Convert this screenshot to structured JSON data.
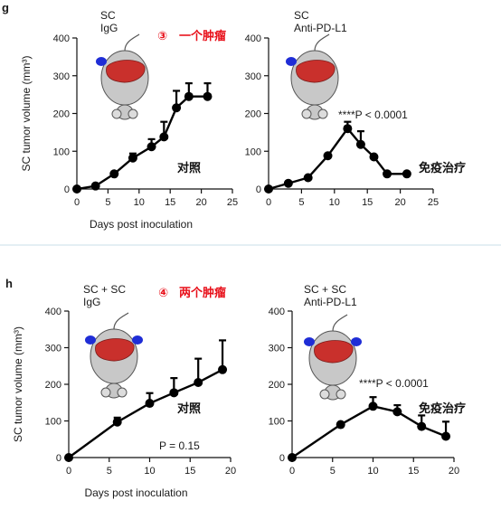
{
  "colors": {
    "accent_red": "#e8101a",
    "tumor_blue": "#1f2dd6",
    "liver_red": "#c9302c",
    "mouse_gray": "#c8c8c8"
  },
  "panels": [
    {
      "letter": "g",
      "circle_label": "③",
      "red_label": "一个肿瘤",
      "charts": [
        {
          "id": "g-left",
          "title_lines": [
            "SC",
            "IgG"
          ],
          "cn_label": "对照",
          "annotation": "",
          "xlabel": "Days post inoculation",
          "ylabel": "SC tumor volume (mm³)"
        },
        {
          "id": "g-right",
          "title_lines": [
            "SC",
            "Anti-PD-L1"
          ],
          "cn_label": "免疫治疗",
          "annotation": "****P < 0.0001",
          "xlabel": "",
          "ylabel": ""
        }
      ]
    },
    {
      "letter": "h",
      "circle_label": "④",
      "red_label": "两个肿瘤",
      "charts": [
        {
          "id": "h-left",
          "title_lines": [
            "SC + SC",
            "IgG"
          ],
          "cn_label": "对照",
          "annotation": "P = 0.15",
          "xlabel": "Days post inoculation",
          "ylabel": "SC tumor volume (mm³)"
        },
        {
          "id": "h-right",
          "title_lines": [
            "SC + SC",
            "Anti-PD-L1"
          ],
          "cn_label": "免疫治疗",
          "annotation": "****P < 0.0001",
          "xlabel": "",
          "ylabel": ""
        }
      ]
    }
  ],
  "chart_data": [
    {
      "type": "line",
      "id": "g-left",
      "x": [
        0,
        3,
        6,
        9,
        12,
        14,
        16,
        18,
        21
      ],
      "y": [
        0,
        8,
        40,
        82,
        112,
        138,
        215,
        245,
        245
      ],
      "yerr_upper": [
        0,
        0,
        0,
        12,
        20,
        40,
        45,
        35,
        35
      ],
      "xticks": [
        0,
        5,
        10,
        15,
        20,
        25
      ],
      "yticks": [
        0,
        100,
        200,
        300,
        400
      ],
      "xlim": [
        0,
        25
      ],
      "ylim": [
        0,
        400
      ],
      "xlabel": "Days post inoculation",
      "ylabel": "SC tumor volume (mm³)"
    },
    {
      "type": "line",
      "id": "g-right",
      "x": [
        0,
        3,
        6,
        9,
        12,
        14,
        16,
        18,
        21
      ],
      "y": [
        0,
        15,
        30,
        88,
        160,
        118,
        85,
        40,
        40
      ],
      "yerr_upper": [
        0,
        0,
        0,
        0,
        18,
        35,
        0,
        0,
        0
      ],
      "xticks": [
        0,
        5,
        10,
        15,
        20,
        25
      ],
      "yticks": [
        0,
        100,
        200,
        300,
        400
      ],
      "xlim": [
        0,
        25
      ],
      "ylim": [
        0,
        400
      ],
      "xlabel": "",
      "ylabel": ""
    },
    {
      "type": "line",
      "id": "h-left",
      "x": [
        0,
        6,
        10,
        13,
        16,
        19
      ],
      "y": [
        0,
        97,
        148,
        177,
        205,
        240
      ],
      "yerr_upper": [
        0,
        12,
        28,
        40,
        65,
        80
      ],
      "xticks": [
        0,
        5,
        10,
        15,
        20
      ],
      "yticks": [
        0,
        100,
        200,
        300,
        400
      ],
      "xlim": [
        0,
        20
      ],
      "ylim": [
        0,
        400
      ],
      "xlabel": "Days post inoculation",
      "ylabel": "SC tumor volume (mm³)"
    },
    {
      "type": "line",
      "id": "h-right",
      "x": [
        0,
        6,
        10,
        13,
        16,
        19
      ],
      "y": [
        0,
        90,
        140,
        125,
        85,
        58
      ],
      "yerr_upper": [
        0,
        0,
        25,
        18,
        30,
        40
      ],
      "xticks": [
        0,
        5,
        10,
        15,
        20
      ],
      "yticks": [
        0,
        100,
        200,
        300,
        400
      ],
      "xlim": [
        0,
        20
      ],
      "ylim": [
        0,
        400
      ],
      "xlabel": "",
      "ylabel": ""
    }
  ]
}
